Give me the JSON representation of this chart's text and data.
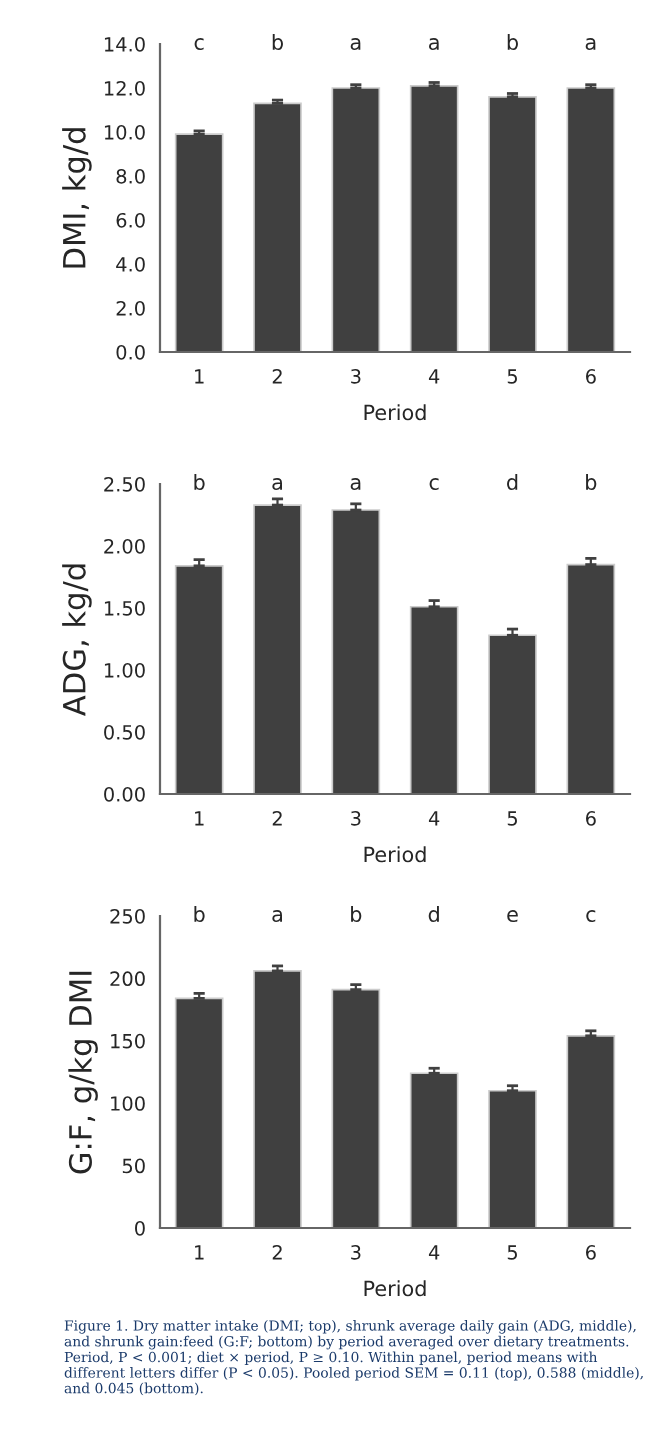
{
  "chart_data": [
    {
      "type": "bar",
      "xlabel": "Period",
      "ylabel": "DMI, kg/d",
      "categories": [
        "1",
        "2",
        "3",
        "4",
        "5",
        "6"
      ],
      "color": "#404040",
      "values": [
        9.9,
        11.3,
        12.0,
        12.1,
        11.6,
        12.0
      ],
      "errors": [
        0.15,
        0.15,
        0.15,
        0.15,
        0.15,
        0.15
      ],
      "ylim": [
        0,
        14
      ],
      "yticks": [
        {
          "value": 0,
          "label": "0.0"
        },
        {
          "value": 2,
          "label": "2.0"
        },
        {
          "value": 4,
          "label": "4.0"
        },
        {
          "value": 6,
          "label": "6.0"
        },
        {
          "value": 8,
          "label": "8.0"
        },
        {
          "value": 10,
          "label": "10.0"
        },
        {
          "value": 12,
          "label": "12.0"
        },
        {
          "value": 14,
          "label": "14.0"
        }
      ],
      "grid": false,
      "annotations": [
        "c",
        "b",
        "a",
        "a",
        "b",
        "a"
      ]
    },
    {
      "type": "bar",
      "xlabel": "Period",
      "ylabel": "ADG, kg/d",
      "categories": [
        "1",
        "2",
        "3",
        "4",
        "5",
        "6"
      ],
      "color": "#404040",
      "values": [
        1.84,
        2.33,
        2.29,
        1.51,
        1.28,
        1.85
      ],
      "errors": [
        0.05,
        0.05,
        0.05,
        0.05,
        0.05,
        0.05
      ],
      "ylim": [
        0,
        2.5
      ],
      "yticks": [
        {
          "value": 0,
          "label": "0.00"
        },
        {
          "value": 0.5,
          "label": "0.50"
        },
        {
          "value": 1,
          "label": "1.00"
        },
        {
          "value": 1.5,
          "label": "1.50"
        },
        {
          "value": 2,
          "label": "2.00"
        },
        {
          "value": 2.5,
          "label": "2.50"
        }
      ],
      "grid": false,
      "annotations": [
        "b",
        "a",
        "a",
        "c",
        "d",
        "b"
      ]
    },
    {
      "type": "bar",
      "xlabel": "Period",
      "ylabel": "G:F, g/kg DMI",
      "categories": [
        "1",
        "2",
        "3",
        "4",
        "5",
        "6"
      ],
      "color": "#404040",
      "values": [
        184,
        206,
        191,
        124,
        110,
        154
      ],
      "errors": [
        4,
        4,
        4,
        4,
        4,
        4
      ],
      "ylim": [
        0,
        250
      ],
      "yticks": [
        0,
        50,
        100,
        150,
        200,
        250
      ],
      "grid": false,
      "annotations": [
        "b",
        "a",
        "b",
        "d",
        "e",
        "c",
        "Figure 1. Dry matter intake (DMI; top), shrunk average daily gain (ADG, middle), and shrunk gain:feed (G:F; bottom) by period averaged over dietary treatments. Period, P < 0.001; diet × period, P ≥ 0.10. Within panel, period means with different letters differ (P < 0.05). Pooled period SEM = 0.11 (top), 0.588 (middle), and 0.045 (bottom)."
      ]
    }
  ]
}
